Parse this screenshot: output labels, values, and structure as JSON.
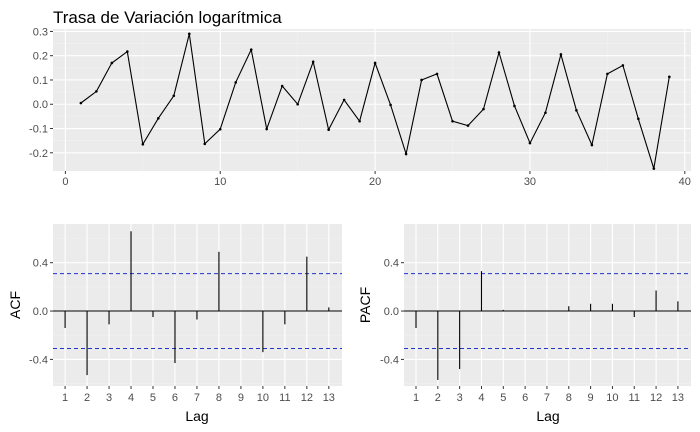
{
  "chart_data": [
    {
      "type": "line",
      "title": "Trasa de Variación logarítmica",
      "xlabel": "",
      "ylabel": "",
      "xlim": [
        -0.8,
        40.4
      ],
      "ylim": [
        -0.275,
        0.31
      ],
      "xticks": [
        0,
        10,
        20,
        30,
        40
      ],
      "yticks": [
        -0.2,
        -0.1,
        0.0,
        0.1,
        0.2,
        0.3
      ],
      "ytick_labels": [
        "-0.2",
        "-0.1",
        "0.0",
        "0.1",
        "0.2",
        "0.3"
      ],
      "grid": true,
      "x": [
        1,
        2,
        3,
        4,
        5,
        6,
        7,
        8,
        9,
        10,
        11,
        12,
        13,
        14,
        15,
        16,
        17,
        18,
        19,
        20,
        21,
        22,
        23,
        24,
        25,
        26,
        27,
        28,
        29,
        30,
        31,
        32,
        33,
        34,
        35,
        36,
        37,
        38,
        39
      ],
      "y": [
        0.005,
        0.053,
        0.17,
        0.217,
        -0.165,
        -0.058,
        0.035,
        0.29,
        -0.163,
        -0.103,
        0.09,
        0.225,
        -0.102,
        0.075,
        0.0,
        0.175,
        -0.105,
        0.018,
        -0.07,
        0.17,
        -0.003,
        -0.205,
        0.1,
        0.125,
        -0.07,
        -0.088,
        -0.02,
        0.213,
        -0.007,
        -0.16,
        -0.035,
        0.205,
        -0.025,
        -0.168,
        0.125,
        0.16,
        -0.06,
        -0.265,
        0.113
      ]
    },
    {
      "type": "bar",
      "xlabel": "Lag",
      "ylabel": "ACF",
      "categories": [
        1,
        2,
        3,
        4,
        5,
        6,
        7,
        8,
        9,
        10,
        11,
        12,
        13
      ],
      "values": [
        -0.14,
        -0.53,
        -0.11,
        0.66,
        -0.05,
        -0.43,
        -0.07,
        0.49,
        0.0,
        -0.34,
        -0.11,
        0.45,
        0.03
      ],
      "ci": 0.31,
      "ylim": [
        -0.62,
        0.72
      ],
      "yticks": [
        -0.4,
        0.0,
        0.4
      ],
      "ytick_labels": [
        "-0.4",
        "0.0",
        "0.4"
      ],
      "xlim": [
        0.45,
        13.6
      ],
      "grid": true
    },
    {
      "type": "bar",
      "xlabel": "Lag",
      "ylabel": "PACF",
      "categories": [
        1,
        2,
        3,
        4,
        5,
        6,
        7,
        8,
        9,
        10,
        11,
        12,
        13
      ],
      "values": [
        -0.14,
        -0.57,
        -0.48,
        0.33,
        0.01,
        0.0,
        0.0,
        0.04,
        0.06,
        0.06,
        -0.05,
        0.17,
        0.08
      ],
      "ci": 0.31,
      "ylim": [
        -0.62,
        0.72
      ],
      "yticks": [
        -0.4,
        0.0,
        0.4
      ],
      "ytick_labels": [
        "-0.4",
        "0.0",
        "0.4"
      ],
      "xlim": [
        0.45,
        13.6
      ],
      "grid": true
    }
  ]
}
